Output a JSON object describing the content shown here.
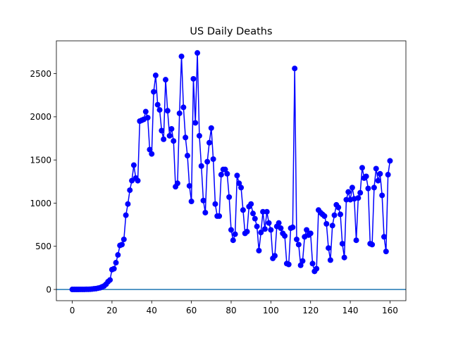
{
  "chart_data": {
    "type": "line",
    "title": "US Daily Deaths",
    "xlabel": "",
    "ylabel": "",
    "xlim": [
      -8,
      168
    ],
    "ylim": [
      -130,
      2880
    ],
    "x_ticks": [
      0,
      20,
      40,
      60,
      80,
      100,
      120,
      140,
      160
    ],
    "y_ticks": [
      0,
      500,
      1000,
      1500,
      2000,
      2500
    ],
    "grid": false,
    "legend": "none",
    "reference_line": {
      "y": 0,
      "color": "#1f77b4"
    },
    "series": [
      {
        "color": "#0000ff",
        "marker": "circle",
        "x": [
          0,
          1,
          2,
          3,
          4,
          5,
          6,
          7,
          8,
          9,
          10,
          11,
          12,
          13,
          14,
          15,
          16,
          17,
          18,
          19,
          20,
          21,
          22,
          23,
          24,
          25,
          26,
          27,
          28,
          29,
          30,
          31,
          32,
          33,
          34,
          35,
          36,
          37,
          38,
          39,
          40,
          41,
          42,
          43,
          44,
          45,
          46,
          47,
          48,
          49,
          50,
          51,
          52,
          53,
          54,
          55,
          56,
          57,
          58,
          59,
          60,
          61,
          62,
          63,
          64,
          65,
          66,
          67,
          68,
          69,
          70,
          71,
          72,
          73,
          74,
          75,
          76,
          77,
          78,
          79,
          80,
          81,
          82,
          83,
          84,
          85,
          86,
          87,
          88,
          89,
          90,
          91,
          92,
          93,
          94,
          95,
          96,
          97,
          98,
          99,
          100,
          101,
          102,
          103,
          104,
          105,
          106,
          107,
          108,
          109,
          110,
          111,
          112,
          113,
          114,
          115,
          116,
          117,
          118,
          119,
          120,
          121,
          122,
          123,
          124,
          125,
          126,
          127,
          128,
          129,
          130,
          131,
          132,
          133,
          134,
          135,
          136,
          137,
          138,
          139,
          140,
          141,
          142,
          143,
          144,
          145,
          146,
          147,
          148,
          149,
          150,
          151,
          152,
          153,
          154,
          155,
          156,
          157,
          158,
          159,
          160
        ],
        "y": [
          0,
          0,
          0,
          0,
          1,
          1,
          1,
          2,
          2,
          3,
          5,
          8,
          10,
          15,
          20,
          30,
          40,
          60,
          90,
          110,
          230,
          240,
          310,
          400,
          510,
          520,
          580,
          860,
          990,
          1150,
          1260,
          1440,
          1290,
          1260,
          1950,
          1960,
          1970,
          2060,
          1990,
          1620,
          1570,
          2290,
          2480,
          2140,
          2080,
          1840,
          1740,
          2430,
          2070,
          1780,
          1860,
          1720,
          1190,
          1230,
          2040,
          2700,
          2110,
          1760,
          1550,
          1200,
          1020,
          2440,
          1930,
          2740,
          1780,
          1430,
          1030,
          890,
          1480,
          1700,
          1870,
          1510,
          990,
          850,
          850,
          1330,
          1390,
          1390,
          1340,
          1070,
          690,
          570,
          640,
          1320,
          1230,
          1180,
          920,
          650,
          670,
          960,
          990,
          880,
          820,
          730,
          450,
          660,
          900,
          700,
          900,
          770,
          690,
          360,
          390,
          730,
          770,
          710,
          650,
          620,
          300,
          290,
          710,
          720,
          2560,
          580,
          520,
          280,
          330,
          610,
          690,
          630,
          650,
          300,
          210,
          240,
          920,
          890,
          870,
          850,
          760,
          480,
          340,
          740,
          860,
          980,
          950,
          870,
          530,
          370,
          1040,
          1130,
          1040,
          1180,
          1050,
          570,
          1060,
          1120,
          1410,
          1290,
          1310,
          1170,
          530,
          520,
          1180,
          1400,
          1260,
          1340,
          1090,
          610,
          440,
          1330,
          1490
        ]
      }
    ]
  }
}
